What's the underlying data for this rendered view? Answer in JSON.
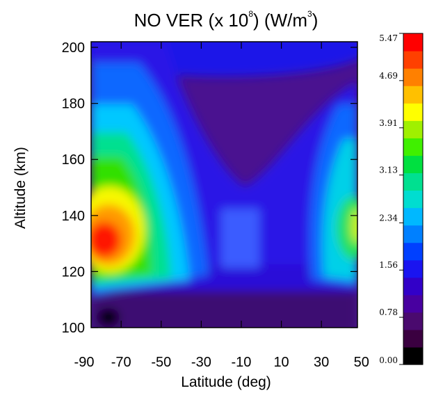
{
  "chart_data": {
    "type": "heatmap",
    "title_parts": {
      "prefix": "NO VER (x 10",
      "exp1": "8",
      "middle": ")  (W/m",
      "exp2": "3",
      "suffix": ")"
    },
    "xlabel": "Latitude (deg)",
    "ylabel": "Altitude (km)",
    "xlim": [
      -85,
      48
    ],
    "ylim": [
      100,
      202
    ],
    "x_ticks": [
      -90,
      -70,
      -50,
      -30,
      -10,
      10,
      30,
      50
    ],
    "y_ticks": [
      100,
      120,
      140,
      160,
      180,
      200
    ],
    "colorbar": {
      "min": 0.0,
      "max": 5.47,
      "tick_labels": [
        "0.00",
        "0.78",
        "1.56",
        "2.34",
        "3.13",
        "3.91",
        "4.69",
        "5.47"
      ],
      "colors": [
        "#000000",
        "#3a0040",
        "#4a0a6e",
        "#4800a0",
        "#3200c8",
        "#1a14f0",
        "#0040ff",
        "#0080ff",
        "#00b8ff",
        "#00ddd0",
        "#00e090",
        "#00e040",
        "#40f000",
        "#a0f000",
        "#ffff00",
        "#ffc000",
        "#ff8000",
        "#ff4000",
        "#ff0000"
      ]
    },
    "grid": false,
    "legend": "colorbar-right"
  }
}
